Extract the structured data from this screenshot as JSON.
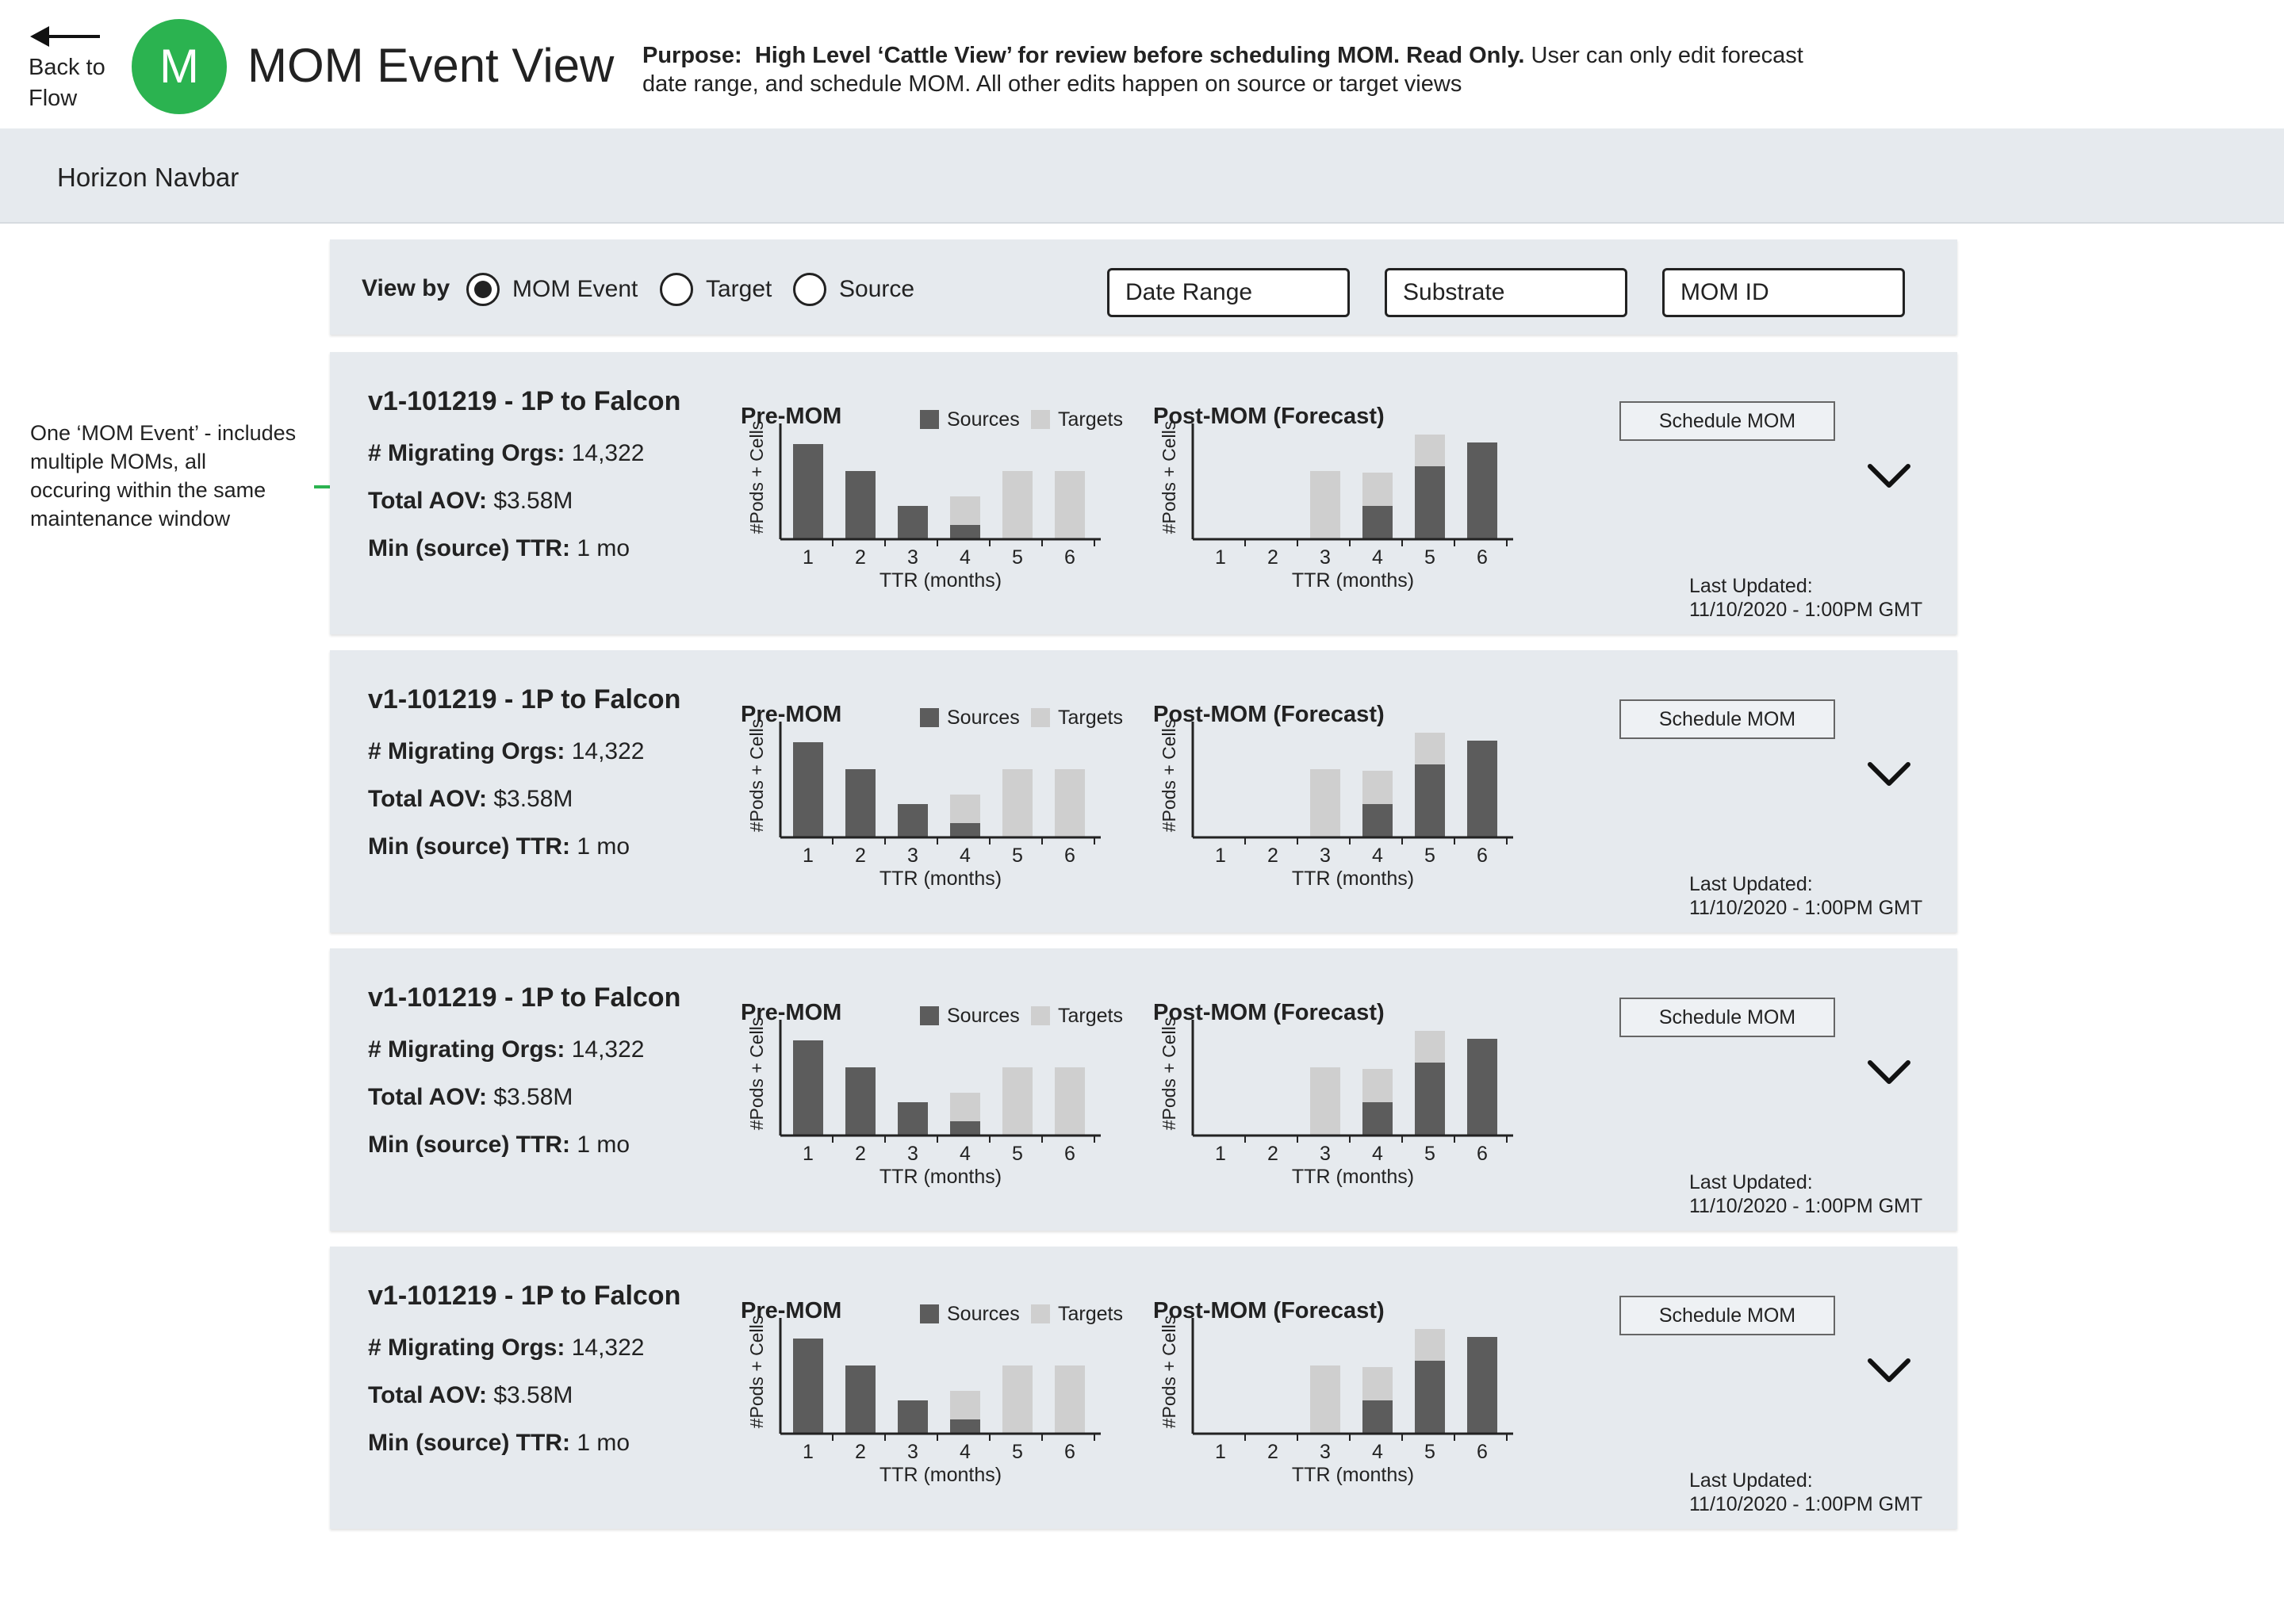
{
  "header": {
    "back_label_line1": "Back to",
    "back_label_line2": "Flow",
    "logo_letter": "M",
    "title": "MOM Event View",
    "purpose_label": "Purpose:",
    "purpose_bold": "High Level ‘Cattle View’ for review before scheduling MOM. Read Only.",
    "purpose_rest_line1": "User can only edit forecast",
    "purpose_line2": "date range, and schedule MOM. All other edits happen on source or target views"
  },
  "navbar": {
    "label": "Horizon Navbar"
  },
  "annotation": {
    "lines": [
      "One ‘MOM Event’ - includes",
      "multiple MOMs, all",
      "occuring within the same",
      "maintenance window"
    ],
    "arrow_color": "#2bb350"
  },
  "filters": {
    "view_by_label": "View by",
    "options": [
      {
        "label": "MOM Event",
        "selected": true
      },
      {
        "label": "Target",
        "selected": false
      },
      {
        "label": "Source",
        "selected": false
      }
    ],
    "fields": [
      "Date Range",
      "Substrate",
      "MOM ID"
    ]
  },
  "cards": [
    {
      "title": "v1-101219 - 1P to Falcon",
      "migrating_orgs_label": "# Migrating Orgs:",
      "migrating_orgs_value": "14,322",
      "total_aov_label": "Total AOV:",
      "total_aov_value": "$3.58M",
      "min_ttr_label": "Min (source) TTR:",
      "min_ttr_value": "1 mo",
      "schedule_label": "Schedule MOM",
      "last_updated_label": "Last Updated:",
      "last_updated_value": "11/10/2020 - 1:00PM  GMT"
    },
    {
      "title": "v1-101219 - 1P to Falcon",
      "migrating_orgs_label": "# Migrating Orgs:",
      "migrating_orgs_value": "14,322",
      "total_aov_label": "Total AOV:",
      "total_aov_value": "$3.58M",
      "min_ttr_label": "Min (source) TTR:",
      "min_ttr_value": "1 mo",
      "schedule_label": "Schedule MOM",
      "last_updated_label": "Last Updated:",
      "last_updated_value": "11/10/2020 - 1:00PM  GMT"
    },
    {
      "title": "v1-101219 - 1P to Falcon",
      "migrating_orgs_label": "# Migrating Orgs:",
      "migrating_orgs_value": "14,322",
      "total_aov_label": "Total AOV:",
      "total_aov_value": "$3.58M",
      "min_ttr_label": "Min (source) TTR:",
      "min_ttr_value": "1 mo",
      "schedule_label": "Schedule MOM",
      "last_updated_label": "Last Updated:",
      "last_updated_value": "11/10/2020 - 1:00PM  GMT"
    },
    {
      "title": "v1-101219 - 1P to Falcon",
      "migrating_orgs_label": "# Migrating Orgs:",
      "migrating_orgs_value": "14,322",
      "total_aov_label": "Total AOV:",
      "total_aov_value": "$3.58M",
      "min_ttr_label": "Min (source) TTR:",
      "min_ttr_value": "1 mo",
      "schedule_label": "Schedule MOM",
      "last_updated_label": "Last Updated:",
      "last_updated_value": "11/10/2020 - 1:00PM  GMT"
    }
  ],
  "chart_data": [
    {
      "type": "bar",
      "title": "Pre-MOM",
      "xlabel": "TTR (months)",
      "ylabel": "#Pods + Cells",
      "categories": [
        "1",
        "2",
        "3",
        "4",
        "5",
        "6"
      ],
      "series": [
        {
          "name": "Sources",
          "color": "#5c5c5c",
          "values": [
            6,
            4.3,
            2.1,
            0.9,
            0,
            0
          ]
        },
        {
          "name": "Targets",
          "color": "#cfcfcf",
          "values": [
            0,
            0,
            0,
            1.8,
            4.3,
            4.3
          ]
        }
      ],
      "stacked": true,
      "legend": "top-right",
      "ylim": [
        0,
        7
      ]
    },
    {
      "type": "bar",
      "title": "Post-MOM (Forecast)",
      "xlabel": "TTR (months)",
      "ylabel": "#Pods + Cells",
      "categories": [
        "1",
        "2",
        "3",
        "4",
        "5",
        "6"
      ],
      "series": [
        {
          "name": "Sources",
          "color": "#5c5c5c",
          "values": [
            0,
            0,
            0,
            2.1,
            4.6,
            6.1
          ]
        },
        {
          "name": "Targets",
          "color": "#cfcfcf",
          "values": [
            0,
            0,
            4.3,
            2.1,
            2.0,
            0
          ]
        }
      ],
      "stacked": true,
      "ylim": [
        0,
        7
      ]
    }
  ]
}
